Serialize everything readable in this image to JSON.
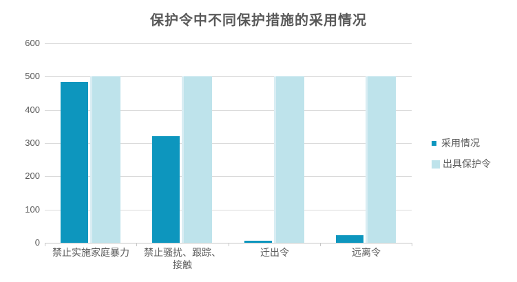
{
  "chart_data": {
    "type": "bar",
    "title": "保护令中不同保护措施的采用情况",
    "categories": [
      "禁止实施家庭暴力",
      "禁止骚扰、跟踪、接触",
      "迁出令",
      "远离令"
    ],
    "series": [
      {
        "name": "采用情况",
        "color": "#0D96BE",
        "values": [
          485,
          320,
          6,
          22
        ]
      },
      {
        "name": "出具保护令",
        "color": "#BEE3EB",
        "values": [
          500,
          500,
          500,
          500
        ]
      }
    ],
    "xlabel": "",
    "ylabel": "",
    "ylim": [
      0,
      600
    ],
    "yticks": [
      600,
      500,
      400,
      300,
      200,
      100,
      0
    ],
    "grid": "horizontal",
    "legend_position": "right",
    "colors": {
      "text": "#595959",
      "gridline": "#d9d9d9",
      "axis_line": "#c6c6c6",
      "background": "#ffffff"
    }
  }
}
